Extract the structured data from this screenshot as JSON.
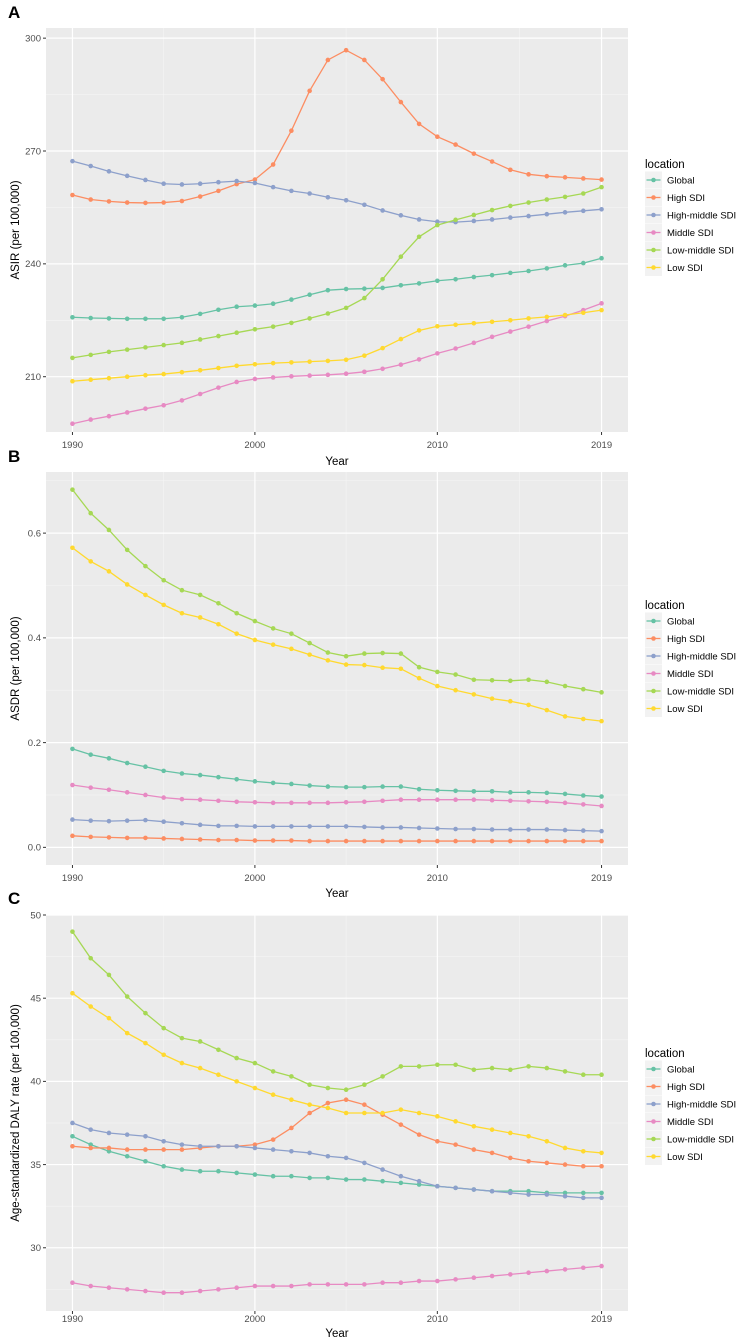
{
  "chart_data": [
    {
      "panel": "A",
      "type": "line",
      "xlabel": "Year",
      "ylabel": "ASIR (per 100,000)",
      "ylim": [
        195.3,
        302.7
      ],
      "yticks": [
        210,
        240,
        270,
        300
      ],
      "xticks": [
        1990,
        2000,
        2010,
        2019
      ],
      "x": [
        1990,
        1991,
        1992,
        1993,
        1994,
        1995,
        1996,
        1997,
        1998,
        1999,
        2000,
        2001,
        2002,
        2003,
        2004,
        2005,
        2006,
        2007,
        2008,
        2009,
        2010,
        2011,
        2012,
        2013,
        2014,
        2015,
        2016,
        2017,
        2018,
        2019
      ],
      "legend_title": "location",
      "series": [
        {
          "name": "Global",
          "color": "#66c2a5",
          "values": [
            225.8,
            225.6,
            225.5,
            225.4,
            225.4,
            225.4,
            225.8,
            226.7,
            227.8,
            228.6,
            228.9,
            229.4,
            230.5,
            231.8,
            233.0,
            233.3,
            233.4,
            233.6,
            234.3,
            234.8,
            235.5,
            235.9,
            236.5,
            237.0,
            237.6,
            238.1,
            238.8,
            239.6,
            240.2,
            241.5
          ]
        },
        {
          "name": "High SDI",
          "color": "#fc8d62",
          "values": [
            258.3,
            257.1,
            256.6,
            256.3,
            256.2,
            256.3,
            256.7,
            257.9,
            259.4,
            261.2,
            262.4,
            266.4,
            275.4,
            286.0,
            294.2,
            296.8,
            294.2,
            289.1,
            283.0,
            277.2,
            273.8,
            271.7,
            269.3,
            267.2,
            265.0,
            263.8,
            263.3,
            263.0,
            262.7,
            262.4
          ]
        },
        {
          "name": "High-middle SDI",
          "color": "#8da0cb",
          "values": [
            267.3,
            266.0,
            264.6,
            263.4,
            262.3,
            261.3,
            261.1,
            261.3,
            261.7,
            262.0,
            261.5,
            260.4,
            259.4,
            258.7,
            257.7,
            256.9,
            255.7,
            254.2,
            252.9,
            251.8,
            251.2,
            251.1,
            251.4,
            251.8,
            252.3,
            252.7,
            253.2,
            253.7,
            254.1,
            254.5
          ]
        },
        {
          "name": "Middle SDI",
          "color": "#e78ac3",
          "values": [
            197.5,
            198.6,
            199.5,
            200.5,
            201.5,
            202.4,
            203.7,
            205.4,
            207.1,
            208.6,
            209.4,
            209.8,
            210.1,
            210.3,
            210.5,
            210.8,
            211.3,
            212.1,
            213.2,
            214.6,
            216.2,
            217.5,
            219.0,
            220.6,
            222.0,
            223.3,
            224.8,
            226.1,
            227.7,
            229.5
          ]
        },
        {
          "name": "Low-middle SDI",
          "color": "#a6d854",
          "values": [
            215.0,
            215.8,
            216.6,
            217.2,
            217.8,
            218.4,
            219.0,
            219.9,
            220.8,
            221.7,
            222.6,
            223.3,
            224.3,
            225.5,
            226.8,
            228.3,
            230.9,
            235.9,
            241.9,
            247.2,
            250.3,
            251.7,
            253.0,
            254.3,
            255.4,
            256.3,
            257.1,
            257.8,
            258.7,
            260.4
          ]
        },
        {
          "name": "Low SDI",
          "color": "#ffd92f",
          "values": [
            208.8,
            209.2,
            209.6,
            210.0,
            210.4,
            210.7,
            211.2,
            211.7,
            212.3,
            212.9,
            213.3,
            213.6,
            213.8,
            214.0,
            214.2,
            214.5,
            215.6,
            217.6,
            220.0,
            222.3,
            223.4,
            223.8,
            224.2,
            224.6,
            225.0,
            225.5,
            225.9,
            226.4,
            227.0,
            227.7
          ]
        }
      ]
    },
    {
      "panel": "B",
      "type": "line",
      "xlabel": "Year",
      "ylabel": "ASDR (per 100,000)",
      "ylim": [
        -0.0337,
        0.7167
      ],
      "yticks": [
        0.0,
        0.2,
        0.4,
        0.6
      ],
      "ytick_labels": [
        "0.0",
        "0.2",
        "0.4",
        "0.6"
      ],
      "xticks": [
        1990,
        2000,
        2010,
        2019
      ],
      "x": [
        1990,
        1991,
        1992,
        1993,
        1994,
        1995,
        1996,
        1997,
        1998,
        1999,
        2000,
        2001,
        2002,
        2003,
        2004,
        2005,
        2006,
        2007,
        2008,
        2009,
        2010,
        2011,
        2012,
        2013,
        2014,
        2015,
        2016,
        2017,
        2018,
        2019
      ],
      "legend_title": "location",
      "series": [
        {
          "name": "Global",
          "color": "#66c2a5",
          "values": [
            0.188,
            0.177,
            0.17,
            0.161,
            0.154,
            0.146,
            0.141,
            0.138,
            0.134,
            0.13,
            0.126,
            0.123,
            0.121,
            0.118,
            0.116,
            0.115,
            0.115,
            0.116,
            0.116,
            0.111,
            0.109,
            0.108,
            0.107,
            0.107,
            0.105,
            0.105,
            0.104,
            0.102,
            0.099,
            0.097
          ]
        },
        {
          "name": "High SDI",
          "color": "#fc8d62",
          "values": [
            0.022,
            0.02,
            0.019,
            0.018,
            0.018,
            0.017,
            0.016,
            0.015,
            0.014,
            0.014,
            0.013,
            0.013,
            0.013,
            0.012,
            0.012,
            0.012,
            0.012,
            0.012,
            0.012,
            0.012,
            0.012,
            0.012,
            0.012,
            0.012,
            0.012,
            0.012,
            0.012,
            0.012,
            0.012,
            0.012
          ]
        },
        {
          "name": "High-middle SDI",
          "color": "#8da0cb",
          "values": [
            0.053,
            0.051,
            0.05,
            0.051,
            0.052,
            0.049,
            0.046,
            0.043,
            0.041,
            0.041,
            0.04,
            0.04,
            0.04,
            0.04,
            0.04,
            0.04,
            0.039,
            0.038,
            0.038,
            0.037,
            0.036,
            0.035,
            0.035,
            0.034,
            0.034,
            0.034,
            0.034,
            0.033,
            0.032,
            0.031
          ]
        },
        {
          "name": "Middle SDI",
          "color": "#e78ac3",
          "values": [
            0.119,
            0.114,
            0.11,
            0.105,
            0.1,
            0.095,
            0.092,
            0.091,
            0.089,
            0.087,
            0.086,
            0.085,
            0.085,
            0.085,
            0.085,
            0.086,
            0.087,
            0.089,
            0.091,
            0.091,
            0.091,
            0.091,
            0.091,
            0.09,
            0.089,
            0.088,
            0.087,
            0.085,
            0.082,
            0.079
          ]
        },
        {
          "name": "Low-middle SDI",
          "color": "#a6d854",
          "values": [
            0.683,
            0.638,
            0.606,
            0.568,
            0.537,
            0.51,
            0.491,
            0.482,
            0.466,
            0.447,
            0.432,
            0.418,
            0.408,
            0.39,
            0.372,
            0.365,
            0.37,
            0.371,
            0.37,
            0.344,
            0.335,
            0.33,
            0.32,
            0.319,
            0.318,
            0.32,
            0.316,
            0.308,
            0.302,
            0.296
          ]
        },
        {
          "name": "Low SDI",
          "color": "#ffd92f",
          "values": [
            0.572,
            0.546,
            0.527,
            0.502,
            0.482,
            0.463,
            0.447,
            0.439,
            0.426,
            0.408,
            0.396,
            0.387,
            0.379,
            0.368,
            0.357,
            0.349,
            0.348,
            0.343,
            0.341,
            0.323,
            0.308,
            0.3,
            0.292,
            0.284,
            0.279,
            0.272,
            0.262,
            0.25,
            0.245,
            0.241
          ]
        }
      ]
    },
    {
      "panel": "C",
      "type": "line",
      "xlabel": "Year",
      "ylabel": "Age-standardized DALY rate (per 100,000)",
      "ylim": [
        26.2,
        50.0
      ],
      "yticks": [
        30,
        35,
        40,
        45,
        50
      ],
      "xticks": [
        1990,
        2000,
        2010,
        2019
      ],
      "x": [
        1990,
        1991,
        1992,
        1993,
        1994,
        1995,
        1996,
        1997,
        1998,
        1999,
        2000,
        2001,
        2002,
        2003,
        2004,
        2005,
        2006,
        2007,
        2008,
        2009,
        2010,
        2011,
        2012,
        2013,
        2014,
        2015,
        2016,
        2017,
        2018,
        2019
      ],
      "legend_title": "location",
      "series": [
        {
          "name": "Global",
          "color": "#66c2a5",
          "values": [
            36.7,
            36.2,
            35.8,
            35.5,
            35.2,
            34.9,
            34.7,
            34.6,
            34.6,
            34.5,
            34.4,
            34.3,
            34.3,
            34.2,
            34.2,
            34.1,
            34.1,
            34.0,
            33.9,
            33.8,
            33.7,
            33.6,
            33.5,
            33.4,
            33.4,
            33.4,
            33.3,
            33.3,
            33.3,
            33.3
          ]
        },
        {
          "name": "High SDI",
          "color": "#fc8d62",
          "values": [
            36.1,
            36.0,
            36.0,
            35.9,
            35.9,
            35.9,
            35.9,
            36.0,
            36.1,
            36.1,
            36.2,
            36.5,
            37.2,
            38.1,
            38.7,
            38.9,
            38.6,
            38.0,
            37.4,
            36.8,
            36.4,
            36.2,
            35.9,
            35.7,
            35.4,
            35.2,
            35.1,
            35.0,
            34.9,
            34.9
          ]
        },
        {
          "name": "High-middle SDI",
          "color": "#8da0cb",
          "values": [
            37.5,
            37.1,
            36.9,
            36.8,
            36.7,
            36.4,
            36.2,
            36.1,
            36.1,
            36.1,
            36.0,
            35.9,
            35.8,
            35.7,
            35.5,
            35.4,
            35.1,
            34.7,
            34.3,
            34.0,
            33.7,
            33.6,
            33.5,
            33.4,
            33.3,
            33.2,
            33.2,
            33.1,
            33.0,
            33.0
          ]
        },
        {
          "name": "Middle SDI",
          "color": "#e78ac3",
          "values": [
            27.9,
            27.7,
            27.6,
            27.5,
            27.4,
            27.3,
            27.3,
            27.4,
            27.5,
            27.6,
            27.7,
            27.7,
            27.7,
            27.8,
            27.8,
            27.8,
            27.8,
            27.9,
            27.9,
            28.0,
            28.0,
            28.1,
            28.2,
            28.3,
            28.4,
            28.5,
            28.6,
            28.7,
            28.8,
            28.9
          ]
        },
        {
          "name": "Low-middle SDI",
          "color": "#a6d854",
          "values": [
            49.0,
            47.4,
            46.4,
            45.1,
            44.1,
            43.2,
            42.6,
            42.4,
            41.9,
            41.4,
            41.1,
            40.6,
            40.3,
            39.8,
            39.6,
            39.5,
            39.8,
            40.3,
            40.9,
            40.9,
            41.0,
            41.0,
            40.7,
            40.8,
            40.7,
            40.9,
            40.8,
            40.6,
            40.4,
            40.4
          ]
        },
        {
          "name": "Low SDI",
          "color": "#ffd92f",
          "values": [
            45.3,
            44.5,
            43.8,
            42.9,
            42.3,
            41.6,
            41.1,
            40.8,
            40.4,
            40.0,
            39.6,
            39.2,
            38.9,
            38.6,
            38.4,
            38.1,
            38.1,
            38.1,
            38.3,
            38.1,
            37.9,
            37.6,
            37.3,
            37.1,
            36.9,
            36.7,
            36.4,
            36.0,
            35.8,
            35.7
          ]
        }
      ]
    }
  ]
}
